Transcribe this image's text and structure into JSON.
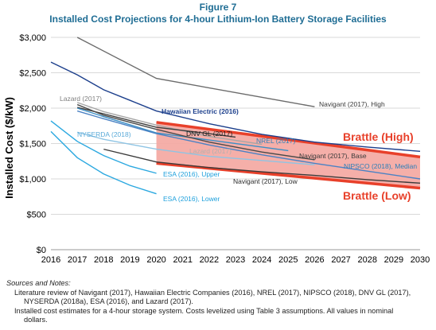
{
  "figure_label": "Figure 7",
  "title": "Installed Cost Projections for 4-hour Lithium-Ion Battery Storage Facilities",
  "chart_data": {
    "type": "line",
    "ylabel": "Installed Cost ($/kW)",
    "xlabel": "",
    "xlim": [
      2016,
      2030
    ],
    "ylim": [
      0,
      3000
    ],
    "x_ticks": [
      "2016",
      "2017",
      "2018",
      "2019",
      "2020",
      "2021",
      "2022",
      "2023",
      "2024",
      "2025",
      "2026",
      "2027",
      "2028",
      "2029",
      "2030"
    ],
    "y_ticks": [
      {
        "value": 0,
        "label": "$0"
      },
      {
        "value": 500,
        "label": "$500"
      },
      {
        "value": 1000,
        "label": "$1,000"
      },
      {
        "value": 1500,
        "label": "$1,500"
      },
      {
        "value": 2000,
        "label": "$2,000"
      },
      {
        "value": 2500,
        "label": "$2,500"
      },
      {
        "value": 3000,
        "label": "$3,000"
      }
    ],
    "band": {
      "x": [
        2020,
        2030
      ],
      "upper": [
        1800,
        1310
      ],
      "lower": [
        1220,
        870
      ],
      "color": "#f4a6a0",
      "edge_color": "#e8402a",
      "labels": [
        {
          "text": "Brattle (High)",
          "color": "#e8402a"
        },
        {
          "text": "Brattle (Low)",
          "color": "#e8402a"
        }
      ]
    },
    "series": [
      {
        "name": "Navigant (2017), High",
        "color": "#6b6b6b",
        "x": [
          2017,
          2020,
          2026
        ],
        "y": [
          3000,
          2420,
          2020
        ]
      },
      {
        "name": "Hawaiian Electric (2016)",
        "color": "#1c3f8c",
        "x": [
          2016,
          2017,
          2018,
          2019,
          2020,
          2022,
          2024,
          2026,
          2028,
          2030
        ],
        "y": [
          2650,
          2470,
          2260,
          2110,
          1960,
          1780,
          1630,
          1520,
          1450,
          1390
        ]
      },
      {
        "name": "Lazard (2017)",
        "color": "#a6a6a6",
        "x": [
          2017,
          2018,
          2020,
          2022,
          2024
        ],
        "y": [
          2080,
          1950,
          1760,
          1600,
          1490
        ]
      },
      {
        "name": "DNV GL (2017)",
        "color": "#3c3c3c",
        "x": [
          2017,
          2018,
          2020,
          2022,
          2023
        ],
        "y": [
          2010,
          1920,
          1730,
          1640,
          1590
        ]
      },
      {
        "name": "NREL (2017)",
        "color": "#3b8fc6",
        "x": [
          2017,
          2018,
          2020,
          2022,
          2024,
          2025
        ],
        "y": [
          2000,
          1880,
          1650,
          1550,
          1450,
          1400
        ]
      },
      {
        "name": "NYSERDA (2018)",
        "color": "#8ec4e4",
        "x": [
          2017,
          2018,
          2020,
          2022,
          2024,
          2025,
          2026
        ],
        "y": [
          1660,
          1560,
          1420,
          1320,
          1260,
          1230,
          1200
        ]
      },
      {
        "name": "Navigant (2017), Base",
        "color": "#4a4a4a",
        "x": [
          2017,
          2018,
          2020,
          2022,
          2024,
          2026
        ],
        "y": [
          2050,
          1900,
          1700,
          1520,
          1380,
          1270
        ]
      },
      {
        "name": "NIPSCO (2018), Median",
        "color": "#4b82c4",
        "x": [
          2017,
          2018,
          2020,
          2022,
          2024,
          2026,
          2028,
          2030
        ],
        "y": [
          1960,
          1850,
          1640,
          1480,
          1340,
          1220,
          1110,
          1000
        ]
      },
      {
        "name": "Navigant (2017), Low",
        "color": "#3a3a3a",
        "x": [
          2018,
          2020,
          2022,
          2024,
          2026,
          2028,
          2030
        ],
        "y": [
          1420,
          1240,
          1160,
          1100,
          1050,
          990,
          940
        ]
      },
      {
        "name": "ESA (2016), Upper",
        "color": "#2ba8e0",
        "x": [
          2016,
          2017,
          2018,
          2019,
          2020
        ],
        "y": [
          1820,
          1530,
          1330,
          1180,
          1080
        ]
      },
      {
        "name": "ESA (2016), Lower",
        "color": "#2ba8e0",
        "x": [
          2016,
          2017,
          2018,
          2019,
          2020
        ],
        "y": [
          1670,
          1300,
          1070,
          910,
          790
        ]
      }
    ],
    "series_labels": [
      {
        "text": "Navigant (2017), High",
        "color": "#3a3a3a"
      },
      {
        "text": "Hawaiian Electric (2016)",
        "color": "#1c3f8c"
      },
      {
        "text": "Lazard (2017)",
        "color": "#7f7f7f"
      },
      {
        "text": "DNV GL (2017)",
        "color": "#1a1a1a"
      },
      {
        "text": "NREL (2017)",
        "color": "#2e7fb8"
      },
      {
        "text": "NYSERDA (2018)",
        "color": "#5aaad8"
      },
      {
        "text": "Lazard (2017)",
        "color": "#b0b0b0"
      },
      {
        "text": "Navigant (2017), Base",
        "color": "#3a3a3a"
      },
      {
        "text": "NIPSCO (2018), Median",
        "color": "#2e7fb8"
      },
      {
        "text": "Navigant (2017), Low",
        "color": "#2a2a2a"
      },
      {
        "text": "ESA (2016), Upper",
        "color": "#1ea0dc"
      },
      {
        "text": "ESA (2016), Lower",
        "color": "#1ea0dc"
      }
    ],
    "grid": "horizontal"
  },
  "notes": {
    "header": "Sources and Notes:",
    "line1": "Literature review of Navigant (2017), Hawaiian Electric Companies (2016), NREL (2017), NIPSCO (2018), DNV GL (2017),",
    "line2": "NYSERDA (2018a), ESA (2016), and Lazard (2017).",
    "line3": "Installed cost estimates for a 4-hour storage system.  Costs levelized using Table 3 assumptions.  All values in nominal",
    "line4": "dollars."
  }
}
